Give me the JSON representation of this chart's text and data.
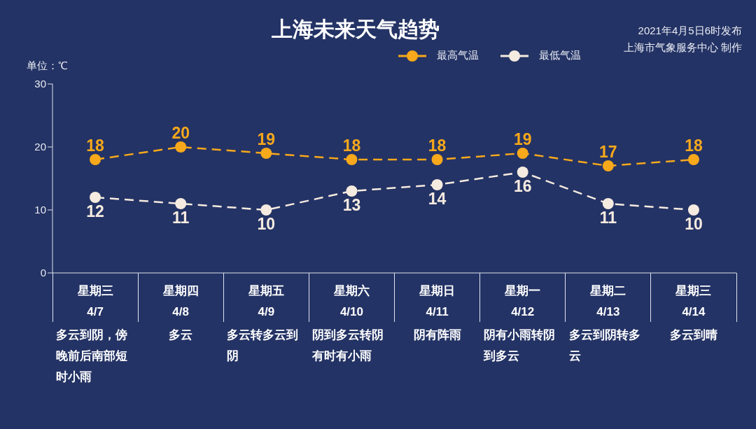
{
  "chart_data": {
    "type": "line",
    "title": "上海未来天气趋势",
    "ylabel": "单位：℃",
    "categories": [
      "星期三\n4/7",
      "星期四\n4/8",
      "星期五\n4/9",
      "星期六\n4/10",
      "星期日\n4/11",
      "星期一\n4/12",
      "星期二\n4/13",
      "星期三\n4/14"
    ],
    "series": [
      {
        "name": "最高气温",
        "color": "#f7a81b",
        "values": [
          18,
          20,
          19,
          18,
          18,
          19,
          17,
          18
        ]
      },
      {
        "name": "最低气温",
        "color": "#f5ebe0",
        "values": [
          12,
          11,
          10,
          13,
          14,
          16,
          11,
          10
        ]
      }
    ],
    "ylim": [
      0,
      30
    ],
    "yticks": [
      0,
      10,
      20,
      30
    ],
    "legend": "top right",
    "marker": "circle",
    "line_style": "dashed",
    "data_labels": true,
    "annotations": [
      "2021年4月5日6时发布",
      "上海市气象服务中心 制作",
      "多云到阴，傍晚前后南部短时小雨",
      "多云",
      "多云转多云到阴",
      "阴到多云转阴有时有小雨",
      "阴有阵雨",
      "阴有小雨转阴到多云",
      "多云到阴转多云",
      "多云到晴"
    ]
  }
}
